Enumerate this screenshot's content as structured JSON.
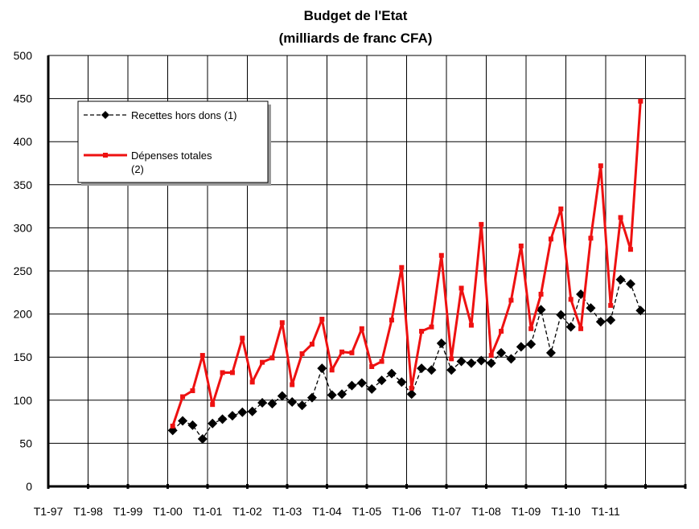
{
  "chart_data": {
    "type": "line",
    "title": "Budget de l'Etat",
    "subtitle": "(milliards de franc CFA)",
    "xlabel": "",
    "ylabel": "",
    "ylim": [
      0,
      500
    ],
    "y_ticks": [
      0,
      50,
      100,
      150,
      200,
      250,
      300,
      350,
      400,
      450,
      500
    ],
    "x_tick_labels": [
      "T1-97",
      "T1-98",
      "T1-99",
      "T1-00",
      "T1-01",
      "T1-02",
      "T1-03",
      "T1-04",
      "T1-05",
      "T1-06",
      "T1-07",
      "T1-08",
      "T1-09",
      "T1-10",
      "T1-11"
    ],
    "grid": true,
    "legend_position": "top-left",
    "x_start": "T1-00",
    "x_step": "quarter",
    "series": [
      {
        "name": "Recettes hors dons (1)",
        "color": "#000000",
        "line_style": "dashed",
        "marker": "diamond",
        "values": [
          65,
          76,
          71,
          55,
          73,
          78,
          82,
          86,
          87,
          97,
          96,
          105,
          98,
          94,
          103,
          137,
          106,
          107,
          117,
          120,
          113,
          123,
          131,
          121,
          107,
          137,
          135,
          166,
          135,
          145,
          143,
          146,
          143,
          155,
          148,
          162,
          165,
          205,
          155,
          199,
          185,
          223,
          207,
          191,
          193,
          240,
          235,
          204
        ]
      },
      {
        "name": "Dépenses totales (2)",
        "color": "#ee1111",
        "line_style": "solid",
        "marker": "square",
        "values": [
          70,
          104,
          111,
          152,
          95,
          132,
          132,
          172,
          121,
          144,
          149,
          190,
          118,
          154,
          165,
          194,
          135,
          156,
          155,
          183,
          139,
          145,
          193,
          254,
          114,
          180,
          185,
          268,
          148,
          230,
          187,
          304,
          152,
          180,
          216,
          279,
          183,
          223,
          287,
          322,
          217,
          183,
          288,
          372,
          210,
          312,
          275,
          447
        ]
      }
    ],
    "legend": {
      "entries": [
        {
          "lines": [
            "Recettes hors dons (1)"
          ]
        },
        {
          "lines": [
            "Dépenses totales",
            "(2)"
          ]
        }
      ]
    }
  }
}
